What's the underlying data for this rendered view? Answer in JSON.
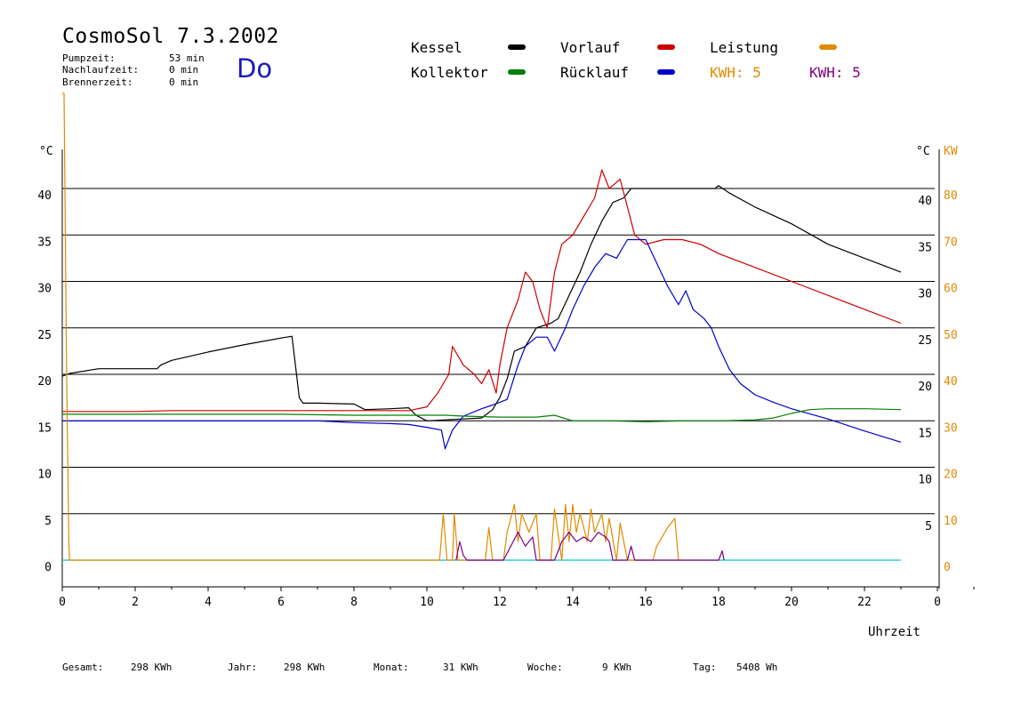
{
  "header": {
    "title": "CosmoSol 7.3.2002",
    "day": "Do",
    "pump_label": "Pumpzeit:",
    "pump_value": "53 min",
    "nachlauf_label": "Nachlaufzeit:",
    "nachlauf_value": "0 min",
    "brenner_label": "Brennerzeit:",
    "brenner_value": "0 min"
  },
  "legend": {
    "kessel": "Kessel",
    "kollektor": "Kollektor",
    "vorlauf": "Vorlauf",
    "ruecklauf": "Rücklauf",
    "leistung": "Leistung",
    "kwh1": "KWH: 5",
    "kwh2": "KWH: 5"
  },
  "footer": {
    "gesamt_label": "Gesamt:",
    "gesamt_value": "298 KWh",
    "jahr_label": "Jahr:",
    "jahr_value": "298 KWh",
    "monat_label": "Monat:",
    "monat_value": "31 KWh",
    "woche_label": "Woche:",
    "woche_value": "9 KWh",
    "tag_label": "Tag:",
    "tag_value": "5408 Wh"
  },
  "colors": {
    "kessel": "#000000",
    "kollektor": "#008000",
    "vorlauf": "#cc0000",
    "ruecklauf": "#0000cc",
    "leistung": "#e08a00",
    "kwh2": "#800080",
    "baseline": "#00cccc"
  },
  "chart_data": {
    "type": "line",
    "xlabel": "Uhrzeit",
    "ylabel": "°C",
    "ylabel_right": "°C",
    "ylabel_right2": "KW",
    "xlim": [
      0,
      24
    ],
    "ylim": [
      0,
      45
    ],
    "ylim_right2": [
      0,
      90
    ],
    "x_ticks": [
      "0",
      "2",
      "4",
      "6",
      "8",
      "10",
      "12",
      "14",
      "16",
      "18",
      "20",
      "22",
      "0"
    ],
    "y_ticks": [
      "0",
      "5",
      "10",
      "15",
      "20",
      "25",
      "30",
      "35",
      "40"
    ],
    "y_ticks_right": [
      "5",
      "10",
      "15",
      "20",
      "25",
      "30",
      "35",
      "40"
    ],
    "y_ticks_right2": [
      "0",
      "10",
      "20",
      "30",
      "40",
      "50",
      "60",
      "70",
      "80"
    ],
    "grid": true,
    "series": [
      {
        "name": "Kessel",
        "color": "#000000",
        "x": [
          0,
          0.2,
          1,
          2,
          2.6,
          2.7,
          3,
          4,
          5,
          6,
          6.3,
          6.5,
          6.6,
          7,
          8,
          8.3,
          9,
          9.5,
          9.7,
          10,
          10.5,
          11,
          11.5,
          11.8,
          12,
          12.2,
          12.4,
          12.7,
          13,
          13.4,
          13.6,
          13.9,
          14.2,
          14.5,
          14.8,
          15.1,
          15.4,
          15.6,
          16,
          17,
          17.5,
          17.9,
          18,
          18.3,
          19,
          20,
          21,
          22,
          23
        ],
        "y": [
          19.8,
          20.1,
          20.6,
          20.6,
          20.6,
          21,
          21.5,
          22.4,
          23.2,
          23.9,
          24.1,
          17.5,
          16.9,
          16.9,
          16.8,
          16.2,
          16.3,
          16.4,
          15.6,
          15,
          15.1,
          15.2,
          15.3,
          16.2,
          17.5,
          19.5,
          22.5,
          23,
          25,
          25.5,
          26,
          28.5,
          31,
          34,
          36.5,
          38.5,
          39,
          40,
          40,
          40,
          40,
          40,
          40.3,
          39.5,
          38,
          36.2,
          34,
          32.5,
          31
        ]
      },
      {
        "name": "Vorlauf",
        "color": "#cc0000",
        "x": [
          0,
          1,
          2,
          3,
          4,
          5,
          6,
          7,
          8,
          9,
          9.5,
          10,
          10.3,
          10.6,
          10.7,
          11,
          11.3,
          11.5,
          11.7,
          11.9,
          12,
          12.2,
          12.5,
          12.7,
          12.9,
          13.1,
          13.3,
          13.5,
          13.7,
          14,
          14.3,
          14.6,
          14.8,
          15,
          15.3,
          15.5,
          15.7,
          16,
          16.5,
          17,
          17.5,
          18,
          19,
          20,
          21,
          22,
          23
        ],
        "y": [
          16,
          16,
          16,
          16.1,
          16.1,
          16.1,
          16.1,
          16.1,
          16.1,
          16.1,
          16.1,
          16.5,
          18,
          20,
          23,
          21,
          20,
          19,
          20.5,
          18,
          21,
          25,
          28,
          31,
          30,
          27,
          25,
          31,
          34,
          35,
          37,
          39,
          42,
          40,
          41,
          38,
          35,
          34,
          34.5,
          34.5,
          34,
          33,
          31.5,
          30,
          28.5,
          27,
          25.5
        ]
      },
      {
        "name": "Rücklauf",
        "color": "#0000cc",
        "x": [
          0,
          1,
          2,
          3,
          4,
          5,
          6,
          7,
          8,
          9,
          9.5,
          10,
          10.4,
          10.5,
          10.7,
          11,
          11.5,
          11.8,
          12,
          12.2,
          12.5,
          12.7,
          13,
          13.3,
          13.5,
          13.8,
          14,
          14.3,
          14.6,
          14.9,
          15.2,
          15.5,
          15.7,
          16,
          16.3,
          16.6,
          16.9,
          17.1,
          17.3,
          17.6,
          17.8,
          18,
          18.3,
          18.6,
          19,
          19.5,
          20,
          21,
          22,
          23
        ],
        "y": [
          15,
          15,
          15,
          15,
          15,
          15,
          15,
          15,
          14.8,
          14.7,
          14.6,
          14.3,
          14,
          12,
          14,
          15.5,
          16.3,
          16.7,
          17,
          17.3,
          21,
          23,
          24,
          24,
          22.5,
          25,
          27,
          29.5,
          31.5,
          33,
          32.5,
          34.5,
          34.5,
          34.5,
          32,
          29.5,
          27.5,
          29,
          27,
          26,
          25,
          23,
          20.5,
          19,
          17.8,
          17,
          16.3,
          15.2,
          13.9,
          12.7
        ]
      },
      {
        "name": "Kollektor",
        "color": "#008000",
        "x": [
          0,
          2,
          4,
          6,
          8,
          9,
          10,
          10.5,
          11,
          12,
          13,
          13.5,
          14,
          15,
          16,
          17,
          18,
          19,
          19.5,
          20,
          20.5,
          21,
          22,
          23
        ],
        "y": [
          15.7,
          15.7,
          15.7,
          15.7,
          15.6,
          15.6,
          15.6,
          15.6,
          15.5,
          15.4,
          15.4,
          15.6,
          15,
          15,
          14.9,
          15,
          15,
          15.1,
          15.3,
          15.8,
          16.2,
          16.3,
          16.3,
          16.2
        ]
      },
      {
        "name": "Leistung",
        "color": "#e08a00",
        "x": [
          0,
          0.05,
          0.12,
          0.18,
          0.2,
          10.35,
          10.45,
          10.55,
          10.7,
          10.75,
          10.85,
          11.6,
          11.7,
          11.8,
          12.1,
          12.2,
          12.4,
          12.5,
          12.6,
          12.8,
          13,
          13.1,
          13.4,
          13.5,
          13.7,
          13.8,
          13.9,
          14,
          14.1,
          14.2,
          14.4,
          14.5,
          14.6,
          14.8,
          14.9,
          15,
          15.2,
          15.3,
          15.5,
          15.6,
          16.2,
          16.3,
          16.6,
          16.8,
          16.9
        ],
        "y": [
          100,
          55,
          20,
          2,
          0,
          0,
          5,
          0,
          0,
          5,
          0,
          0,
          3.5,
          0,
          0,
          3,
          6,
          2,
          5,
          3,
          5,
          0,
          0,
          5.5,
          0,
          6,
          2,
          6,
          3,
          5,
          2,
          5.5,
          3,
          5,
          2,
          4.5,
          0,
          4,
          0,
          0,
          0,
          1.5,
          3.5,
          4.5,
          0
        ]
      },
      {
        "name": "KWH",
        "color": "#800080",
        "x": [
          10.8,
          10.9,
          11,
          11.1,
          12.1,
          12.3,
          12.5,
          12.7,
          12.9,
          13,
          13.5,
          13.7,
          13.9,
          14.1,
          14.3,
          14.5,
          14.7,
          14.9,
          15,
          15.1,
          15.5,
          15.6,
          15.7,
          18,
          18.1,
          18.15
        ],
        "y": [
          0,
          2,
          0.5,
          0,
          0,
          1.5,
          3,
          1.5,
          2.5,
          0,
          0,
          2,
          3,
          2,
          2.5,
          2,
          3,
          2.5,
          2,
          0,
          0,
          1.5,
          0,
          0,
          1,
          0
        ]
      }
    ]
  }
}
